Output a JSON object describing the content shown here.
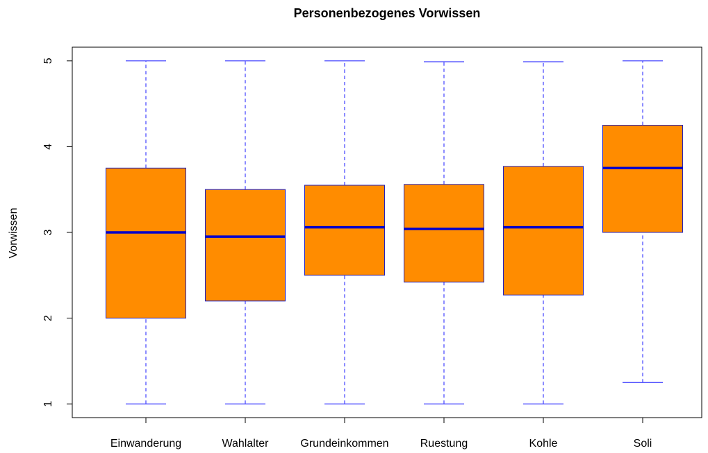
{
  "chart_data": {
    "type": "boxplot",
    "title": "Personenbezogenes Vorwissen",
    "ylabel": "Vorwissen",
    "categories": [
      "Einwanderung",
      "Wahlalter",
      "Grundeinkommen",
      "Ruestung",
      "Kohle",
      "Soli"
    ],
    "min": [
      1,
      1,
      1,
      1,
      1,
      1.25
    ],
    "q1": [
      2,
      2.2,
      2.5,
      2.42,
      2.27,
      3
    ],
    "median": [
      3,
      2.95,
      3.06,
      3.04,
      3.06,
      3.75
    ],
    "q3": [
      3.75,
      3.5,
      3.55,
      3.56,
      3.77,
      4.25
    ],
    "max": [
      5,
      5,
      5,
      4.99,
      4.99,
      5
    ],
    "box_color": "#ff8c00",
    "line_color": "#2020c0",
    "whisker_color": "#4040ff",
    "ylim": [
      0.84,
      5.16
    ],
    "yticks": [
      1,
      2,
      3,
      4,
      5
    ],
    "grid": false
  }
}
